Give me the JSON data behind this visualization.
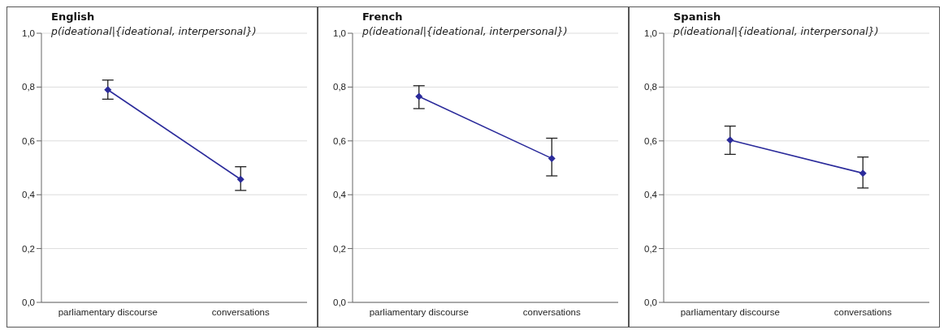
{
  "chart_data": [
    {
      "type": "line",
      "title": "English",
      "subtitle": "p(ideational|{ideational, interpersonal})",
      "categories": [
        "parliamentary discourse",
        "conversations"
      ],
      "series": [
        {
          "color": "#2b2b9b",
          "values": [
            0.79,
            0.457
          ],
          "errors": [
            [
              0.755,
              0.826
            ],
            [
              0.416,
              0.504
            ]
          ]
        }
      ],
      "ylim": [
        0,
        1
      ],
      "yticks": [
        {
          "value": 0,
          "label": "0,0"
        },
        {
          "value": 0.2,
          "label": "0,2"
        },
        {
          "value": 0.4,
          "label": "0,4"
        },
        {
          "value": 0.6,
          "label": "0,6"
        },
        {
          "value": 0.8,
          "label": "0,8"
        },
        {
          "value": 1,
          "label": "1,0"
        }
      ],
      "grid": "y",
      "marker": "diamond",
      "legend": false
    },
    {
      "type": "line",
      "title": "French",
      "subtitle": "p(ideational|{ideational, interpersonal})",
      "categories": [
        "parliamentary discourse",
        "conversations"
      ],
      "series": [
        {
          "color": "#2b2b9b",
          "values": [
            0.765,
            0.535
          ],
          "errors": [
            [
              0.72,
              0.805
            ],
            [
              0.47,
              0.61
            ]
          ]
        }
      ],
      "ylim": [
        0,
        1
      ],
      "yticks": [
        {
          "value": 0,
          "label": "0,0"
        },
        {
          "value": 0.2,
          "label": "0,2"
        },
        {
          "value": 0.4,
          "label": "0,4"
        },
        {
          "value": 0.6,
          "label": "0,6"
        },
        {
          "value": 0.8,
          "label": "0,8"
        },
        {
          "value": 1,
          "label": "1,0"
        }
      ],
      "grid": "y",
      "marker": "diamond",
      "legend": false
    },
    {
      "type": "line",
      "title": "Spanish",
      "subtitle": "p(ideational|{ideational, interpersonal})",
      "categories": [
        "parliamentary discourse",
        "conversations"
      ],
      "series": [
        {
          "color": "#2b2b9b",
          "values": [
            0.603,
            0.48
          ],
          "errors": [
            [
              0.55,
              0.655
            ],
            [
              0.425,
              0.54
            ]
          ]
        }
      ],
      "ylim": [
        0,
        1
      ],
      "yticks": [
        {
          "value": 0,
          "label": "0,0"
        },
        {
          "value": 0.2,
          "label": "0,2"
        },
        {
          "value": 0.4,
          "label": "0,4"
        },
        {
          "value": 0.6,
          "label": "0,6"
        },
        {
          "value": 0.8,
          "label": "0,8"
        },
        {
          "value": 1,
          "label": "1,0"
        }
      ],
      "grid": "y",
      "marker": "diamond",
      "legend": false
    }
  ]
}
